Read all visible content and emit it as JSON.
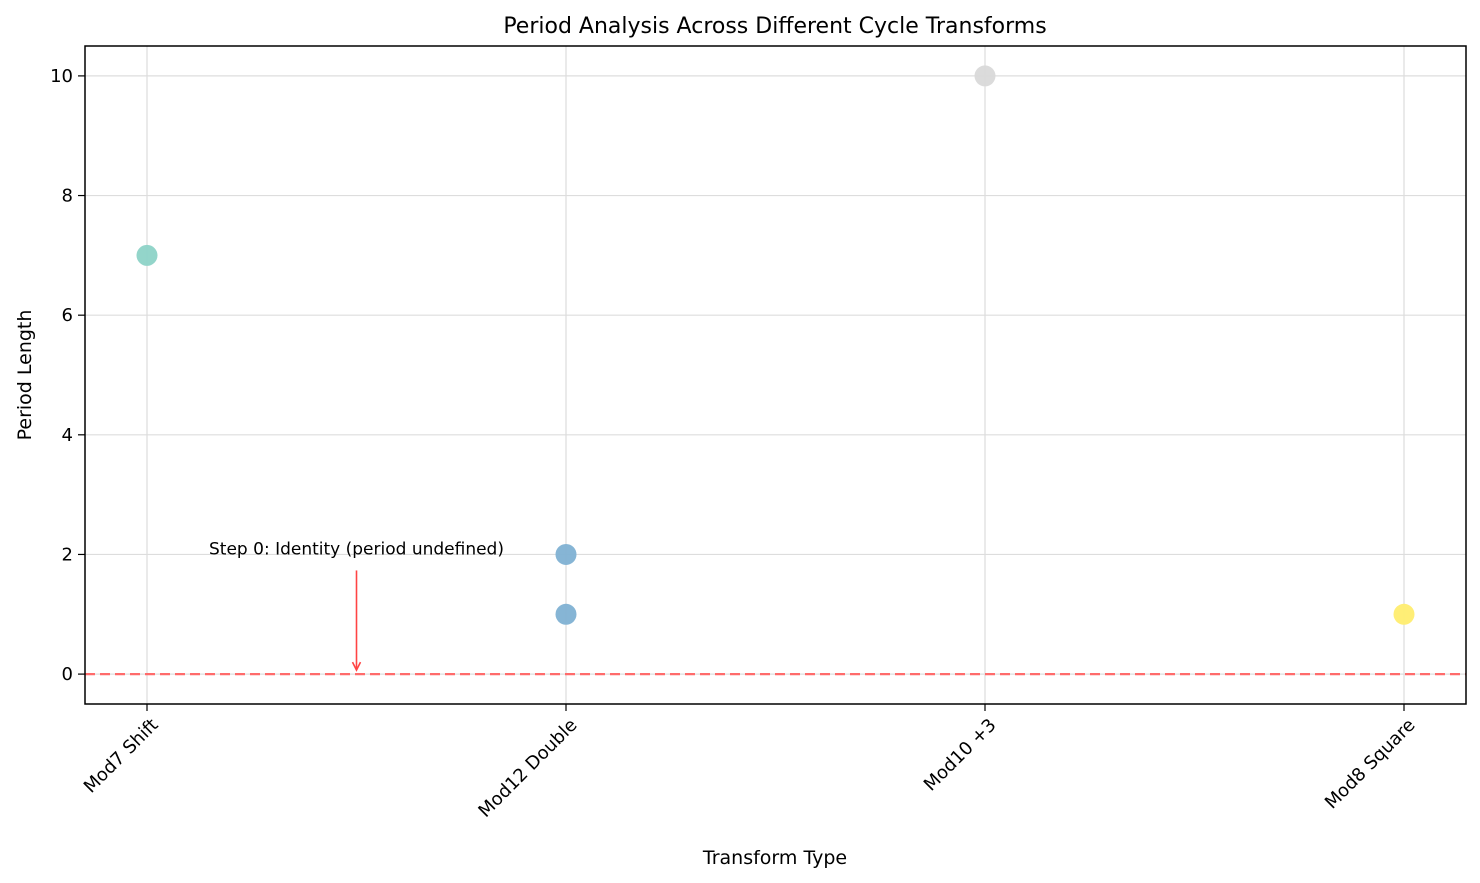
{
  "chart_data": {
    "type": "scatter",
    "title": "Period Analysis Across Different Cycle Transforms",
    "xlabel": "Transform Type",
    "ylabel": "Period Length",
    "categories": [
      "Mod7 Shift",
      "Mod12 Double",
      "Mod10 +3",
      "Mod8 Square"
    ],
    "ylim": [
      -0.5,
      10.5
    ],
    "yticks": [
      0,
      2,
      4,
      6,
      8,
      10
    ],
    "grid": true,
    "points": [
      {
        "category": "Mod7 Shift",
        "y": 7,
        "color": "#8dd3c7"
      },
      {
        "category": "Mod12 Double",
        "y": 2,
        "color": "#80b1d3"
      },
      {
        "category": "Mod12 Double",
        "y": 1,
        "color": "#80b1d3"
      },
      {
        "category": "Mod10 +3",
        "y": 10,
        "color": "#d9d9d9"
      },
      {
        "category": "Mod8 Square",
        "y": 1,
        "color": "#ffed6f"
      }
    ],
    "reference_line": {
      "y": 0,
      "color": "#ff6b6b",
      "style": "dashed"
    },
    "annotation": {
      "text": "Step 0: Identity (period undefined)",
      "x": 0.5,
      "text_y": 2,
      "arrow_to_y": 0,
      "arrow_color": "#ff4444"
    }
  }
}
